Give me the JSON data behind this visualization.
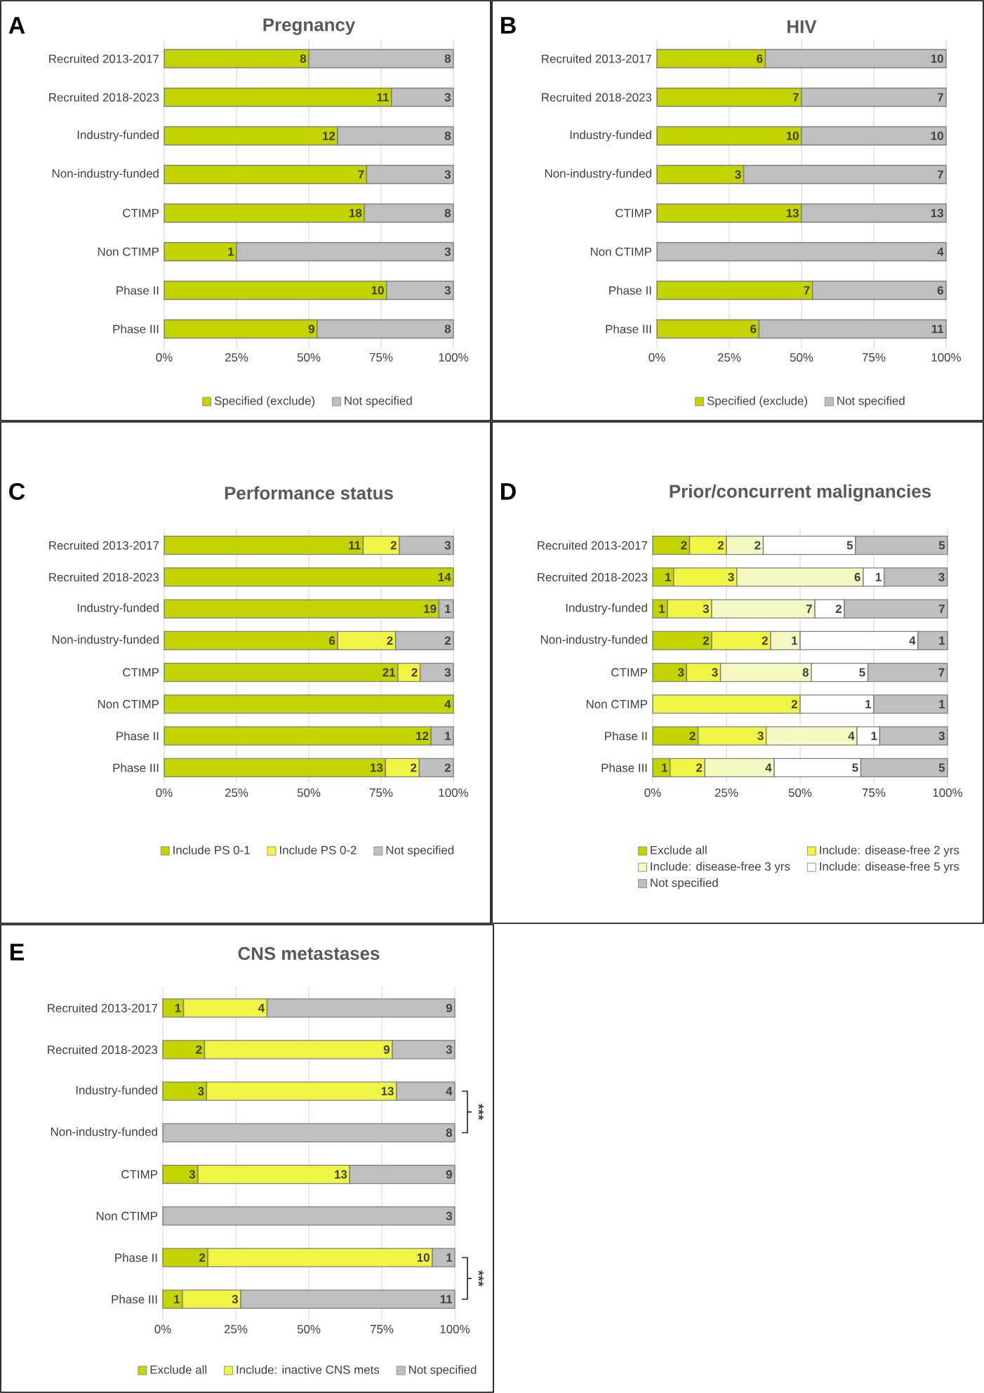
{
  "chart_data": [
    {
      "type": "bar",
      "orientation": "horizontal",
      "stacked": true,
      "title": "Pregnancy",
      "categories": [
        "Recruited 2013-2017",
        "Recruited 2018-2023",
        "Industry-funded",
        "Non-industry-funded",
        "CTIMP",
        "Non CTIMP",
        "Phase II",
        "Phase III"
      ],
      "series": [
        {
          "name": "Specified (exclude)",
          "color": "#c3d400",
          "values": [
            50,
            78.6,
            60,
            70,
            69.2,
            25,
            76.9,
            52.9
          ]
        },
        {
          "name": "Not specified",
          "color": "#bfbfbf",
          "values": [
            50,
            21.4,
            40,
            30,
            30.8,
            75,
            23.1,
            47.1
          ]
        }
      ],
      "annotations": [
        "A",
        {
          "text": "8",
          "x": 50,
          "y": "Recruited 2013-2017"
        },
        {
          "text": "8",
          "x": 100,
          "y": "Recruited 2013-2017"
        },
        {
          "text": "11",
          "x": 78.6,
          "y": "Recruited 2018-2023"
        },
        {
          "text": "3",
          "x": 100,
          "y": "Recruited 2018-2023"
        },
        {
          "text": "12",
          "x": 60,
          "y": "Industry-funded"
        },
        {
          "text": "8",
          "x": 100,
          "y": "Industry-funded"
        },
        {
          "text": "7",
          "x": 70,
          "y": "Non-industry-funded"
        },
        {
          "text": "3",
          "x": 100,
          "y": "Non-industry-funded"
        },
        {
          "text": "18",
          "x": 69.2,
          "y": "CTIMP"
        },
        {
          "text": "8",
          "x": 100,
          "y": "CTIMP"
        },
        {
          "text": "1",
          "x": 25,
          "y": "Non CTIMP"
        },
        {
          "text": "3",
          "x": 100,
          "y": "Non CTIMP"
        },
        {
          "text": "10",
          "x": 76.9,
          "y": "Phase II"
        },
        {
          "text": "3",
          "x": 100,
          "y": "Phase II"
        },
        {
          "text": "9",
          "x": 52.9,
          "y": "Phase III"
        },
        {
          "text": "8",
          "x": 100,
          "y": "Phase III"
        }
      ],
      "xlim": [
        0,
        100
      ],
      "xticks": [
        {
          "value": 0,
          "label": "0%"
        },
        {
          "value": 25,
          "label": "25%"
        },
        {
          "value": 50,
          "label": "50%"
        },
        {
          "value": 75,
          "label": "75%"
        },
        {
          "value": 100,
          "label": "100%"
        }
      ],
      "grid": "x",
      "legend": "bottom"
    },
    {
      "type": "bar",
      "orientation": "horizontal",
      "stacked": true,
      "title": "HIV",
      "categories": [
        "Recruited 2013-2017",
        "Recruited 2018-2023",
        "Industry-funded",
        "Non-industry-funded",
        "CTIMP",
        "Non CTIMP",
        "Phase II",
        "Phase III"
      ],
      "series": [
        {
          "name": "Specified (exclude)",
          "color": "#c3d400",
          "values": [
            37.5,
            50,
            50,
            30,
            50,
            null,
            53.8,
            35.3
          ]
        },
        {
          "name": "Not specified",
          "color": "#bfbfbf",
          "values": [
            62.5,
            50,
            50,
            70,
            50,
            100,
            46.2,
            64.7
          ]
        }
      ],
      "annotations": [
        "B",
        {
          "text": "6",
          "x": 37.5,
          "y": "Recruited 2013-2017"
        },
        {
          "text": "10",
          "x": 100,
          "y": "Recruited 2013-2017"
        },
        {
          "text": "7",
          "x": 50,
          "y": "Recruited 2018-2023"
        },
        {
          "text": "7",
          "x": 100,
          "y": "Recruited 2018-2023"
        },
        {
          "text": "10",
          "x": 50,
          "y": "Industry-funded"
        },
        {
          "text": "10",
          "x": 100,
          "y": "Industry-funded"
        },
        {
          "text": "3",
          "x": 30,
          "y": "Non-industry-funded"
        },
        {
          "text": "7",
          "x": 100,
          "y": "Non-industry-funded"
        },
        {
          "text": "13",
          "x": 50,
          "y": "CTIMP"
        },
        {
          "text": "13",
          "x": 100,
          "y": "CTIMP"
        },
        {
          "text": "4",
          "x": 100,
          "y": "Non CTIMP"
        },
        {
          "text": "7",
          "x": 53.8,
          "y": "Phase II"
        },
        {
          "text": "6",
          "x": 100,
          "y": "Phase II"
        },
        {
          "text": "6",
          "x": 35.3,
          "y": "Phase III"
        },
        {
          "text": "11",
          "x": 100,
          "y": "Phase III"
        }
      ],
      "xlim": [
        0,
        100
      ],
      "xticks": [
        {
          "value": 0,
          "label": "0%"
        },
        {
          "value": 25,
          "label": "25%"
        },
        {
          "value": 50,
          "label": "50%"
        },
        {
          "value": 75,
          "label": "75%"
        },
        {
          "value": 100,
          "label": "100%"
        }
      ],
      "grid": "x",
      "legend": "bottom"
    },
    {
      "type": "bar",
      "orientation": "horizontal",
      "stacked": true,
      "title": "Performance status",
      "categories": [
        "Recruited 2013-2017",
        "Recruited 2018-2023",
        "Industry-funded",
        "Non-industry-funded",
        "CTIMP",
        "Non CTIMP",
        "Phase II",
        "Phase III"
      ],
      "series": [
        {
          "name": "Include PS 0-1",
          "color": "#c3d400",
          "values": [
            68.8,
            100,
            95,
            60,
            80.8,
            100,
            92.3,
            76.5
          ]
        },
        {
          "name": "Include PS 0-2",
          "color": "#f0f545",
          "values": [
            12.5,
            null,
            null,
            20,
            7.7,
            null,
            null,
            11.7
          ]
        },
        {
          "name": "Not specified",
          "color": "#bfbfbf",
          "values": [
            18.7,
            null,
            5,
            20,
            11.5,
            null,
            7.7,
            11.8
          ]
        }
      ],
      "annotations": [
        "C",
        {
          "text": "11",
          "x": 68.8,
          "y": "Recruited 2013-2017"
        },
        {
          "text": "2",
          "x": 81.3,
          "y": "Recruited 2013-2017"
        },
        {
          "text": "3",
          "x": 100,
          "y": "Recruited 2013-2017"
        },
        {
          "text": "14",
          "x": 100,
          "y": "Recruited 2018-2023"
        },
        {
          "text": "19",
          "x": 95,
          "y": "Industry-funded"
        },
        {
          "text": "1",
          "x": 100,
          "y": "Industry-funded"
        },
        {
          "text": "6",
          "x": 60,
          "y": "Non-industry-funded"
        },
        {
          "text": "2",
          "x": 80,
          "y": "Non-industry-funded"
        },
        {
          "text": "2",
          "x": 100,
          "y": "Non-industry-funded"
        },
        {
          "text": "21",
          "x": 80.8,
          "y": "CTIMP"
        },
        {
          "text": "2",
          "x": 88.5,
          "y": "CTIMP"
        },
        {
          "text": "3",
          "x": 100,
          "y": "CTIMP"
        },
        {
          "text": "4",
          "x": 100,
          "y": "Non CTIMP"
        },
        {
          "text": "12",
          "x": 92.3,
          "y": "Phase II"
        },
        {
          "text": "1",
          "x": 100,
          "y": "Phase II"
        },
        {
          "text": "13",
          "x": 76.5,
          "y": "Phase III"
        },
        {
          "text": "2",
          "x": 88.2,
          "y": "Phase III"
        },
        {
          "text": "2",
          "x": 100,
          "y": "Phase III"
        }
      ],
      "xlim": [
        0,
        100
      ],
      "xticks": [
        {
          "value": 0,
          "label": "0%"
        },
        {
          "value": 25,
          "label": "25%"
        },
        {
          "value": 50,
          "label": "50%"
        },
        {
          "value": 75,
          "label": "75%"
        },
        {
          "value": 100,
          "label": "100%"
        }
      ],
      "grid": "x",
      "legend": "bottom"
    },
    {
      "type": "bar",
      "orientation": "horizontal",
      "stacked": true,
      "title": "Prior/concurrent malignancies",
      "categories": [
        "Recruited 2013-2017",
        "Recruited 2018-2023",
        "Industry-funded",
        "Non-industry-funded",
        "CTIMP",
        "Non CTIMP",
        "Phase II",
        "Phase III"
      ],
      "series": [
        {
          "name": "Exclude all",
          "color": "#c3d400",
          "values": [
            12.5,
            7.1,
            5,
            20,
            11.5,
            null,
            15.4,
            5.9
          ]
        },
        {
          "name": "Include: disease-free 2 yrs",
          "color": "#f0f545",
          "values": [
            12.5,
            21.4,
            15,
            20,
            11.5,
            50,
            23.1,
            11.8
          ]
        },
        {
          "name": "Include: disease-free 3 yrs",
          "color": "#f6f8c4",
          "values": [
            12.5,
            42.9,
            35,
            10,
            30.8,
            null,
            30.8,
            23.5
          ]
        },
        {
          "name": "Include: disease-free 5 yrs",
          "color": "#ffffff",
          "values": [
            31.3,
            7.1,
            10,
            40,
            19.2,
            25,
            7.7,
            29.4
          ]
        },
        {
          "name": "Not specified",
          "color": "#bfbfbf",
          "values": [
            31.2,
            21.4,
            35,
            10,
            26.9,
            25,
            23.0,
            29.4
          ]
        }
      ],
      "annotations": [
        "D",
        {
          "text": "2",
          "x": 12.5,
          "y": "Recruited 2013-2017"
        },
        {
          "text": "2",
          "x": 25,
          "y": "Recruited 2013-2017"
        },
        {
          "text": "2",
          "x": 37.5,
          "y": "Recruited 2013-2017"
        },
        {
          "text": "5",
          "x": 68.8,
          "y": "Recruited 2013-2017"
        },
        {
          "text": "5",
          "x": 100,
          "y": "Recruited 2013-2017"
        },
        {
          "text": "1",
          "x": 7.1,
          "y": "Recruited 2018-2023"
        },
        {
          "text": "3",
          "x": 28.5,
          "y": "Recruited 2018-2023"
        },
        {
          "text": "6",
          "x": 71.4,
          "y": "Recruited 2018-2023"
        },
        {
          "text": "1",
          "x": 78.5,
          "y": "Recruited 2018-2023"
        },
        {
          "text": "3",
          "x": 99.9,
          "y": "Recruited 2018-2023"
        },
        {
          "text": "1",
          "x": 5,
          "y": "Industry-funded"
        },
        {
          "text": "3",
          "x": 20,
          "y": "Industry-funded"
        },
        {
          "text": "7",
          "x": 55,
          "y": "Industry-funded"
        },
        {
          "text": "2",
          "x": 65,
          "y": "Industry-funded"
        },
        {
          "text": "7",
          "x": 100,
          "y": "Industry-funded"
        },
        {
          "text": "2",
          "x": 20,
          "y": "Non-industry-funded"
        },
        {
          "text": "2",
          "x": 40,
          "y": "Non-industry-funded"
        },
        {
          "text": "1",
          "x": 50,
          "y": "Non-industry-funded"
        },
        {
          "text": "4",
          "x": 90,
          "y": "Non-industry-funded"
        },
        {
          "text": "1",
          "x": 100,
          "y": "Non-industry-funded"
        },
        {
          "text": "3",
          "x": 11.5,
          "y": "CTIMP"
        },
        {
          "text": "3",
          "x": 23,
          "y": "CTIMP"
        },
        {
          "text": "8",
          "x": 53.8,
          "y": "CTIMP"
        },
        {
          "text": "5",
          "x": 73,
          "y": "CTIMP"
        },
        {
          "text": "7",
          "x": 99.9,
          "y": "CTIMP"
        },
        {
          "text": "2",
          "x": 50,
          "y": "Non CTIMP"
        },
        {
          "text": "1",
          "x": 75,
          "y": "Non CTIMP"
        },
        {
          "text": "1",
          "x": 100,
          "y": "Non CTIMP"
        },
        {
          "text": "2",
          "x": 15.4,
          "y": "Phase II"
        },
        {
          "text": "3",
          "x": 38.5,
          "y": "Phase II"
        },
        {
          "text": "4",
          "x": 69.3,
          "y": "Phase II"
        },
        {
          "text": "1",
          "x": 77,
          "y": "Phase II"
        },
        {
          "text": "3",
          "x": 100,
          "y": "Phase II"
        },
        {
          "text": "1",
          "x": 5.9,
          "y": "Phase III"
        },
        {
          "text": "2",
          "x": 17.7,
          "y": "Phase III"
        },
        {
          "text": "4",
          "x": 41.2,
          "y": "Phase III"
        },
        {
          "text": "5",
          "x": 70.6,
          "y": "Phase III"
        },
        {
          "text": "5",
          "x": 100,
          "y": "Phase III"
        }
      ],
      "xlim": [
        0,
        100
      ],
      "xticks": [
        {
          "value": 0,
          "label": "0%"
        },
        {
          "value": 25,
          "label": "25%"
        },
        {
          "value": 50,
          "label": "50%"
        },
        {
          "value": 75,
          "label": "75%"
        },
        {
          "value": 100,
          "label": "100%"
        }
      ],
      "grid": "x",
      "legend": "bottom"
    },
    {
      "type": "bar",
      "orientation": "horizontal",
      "stacked": true,
      "title": "CNS metastases",
      "categories": [
        "Recruited 2013-2017",
        "Recruited 2018-2023",
        "Industry-funded",
        "Non-industry-funded",
        "CTIMP",
        "Non CTIMP",
        "Phase II",
        "Phase III"
      ],
      "series": [
        {
          "name": "Exclude all",
          "color": "#c3d400",
          "values": [
            7.1,
            14.3,
            15,
            null,
            12,
            null,
            15.4,
            6.7
          ]
        },
        {
          "name": "Include: inactive CNS mets",
          "color": "#f0f545",
          "values": [
            28.6,
            64.3,
            65,
            null,
            52,
            null,
            76.9,
            20
          ]
        },
        {
          "name": "Not specified",
          "color": "#bfbfbf",
          "values": [
            64.3,
            21.4,
            20,
            100,
            36,
            100,
            7.7,
            73.3
          ]
        }
      ],
      "annotations": [
        "E",
        "***",
        "***",
        {
          "text": "1",
          "x": 7.1,
          "y": "Recruited 2013-2017"
        },
        {
          "text": "4",
          "x": 35.7,
          "y": "Recruited 2013-2017"
        },
        {
          "text": "9",
          "x": 100,
          "y": "Recruited 2013-2017"
        },
        {
          "text": "2",
          "x": 14.3,
          "y": "Recruited 2018-2023"
        },
        {
          "text": "9",
          "x": 78.6,
          "y": "Recruited 2018-2023"
        },
        {
          "text": "3",
          "x": 100,
          "y": "Recruited 2018-2023"
        },
        {
          "text": "3",
          "x": 15,
          "y": "Industry-funded"
        },
        {
          "text": "13",
          "x": 80,
          "y": "Industry-funded"
        },
        {
          "text": "4",
          "x": 100,
          "y": "Industry-funded"
        },
        {
          "text": "8",
          "x": 100,
          "y": "Non-industry-funded"
        },
        {
          "text": "3",
          "x": 12,
          "y": "CTIMP"
        },
        {
          "text": "13",
          "x": 64,
          "y": "CTIMP"
        },
        {
          "text": "9",
          "x": 100,
          "y": "CTIMP"
        },
        {
          "text": "3",
          "x": 100,
          "y": "Non CTIMP"
        },
        {
          "text": "2",
          "x": 15.4,
          "y": "Phase II"
        },
        {
          "text": "10",
          "x": 92.3,
          "y": "Phase II"
        },
        {
          "text": "1",
          "x": 100,
          "y": "Phase II"
        },
        {
          "text": "1",
          "x": 6.7,
          "y": "Phase III"
        },
        {
          "text": "3",
          "x": 26.7,
          "y": "Phase III"
        },
        {
          "text": "11",
          "x": 100,
          "y": "Phase III"
        }
      ],
      "xlim": [
        0,
        100
      ],
      "xticks": [
        {
          "value": 0,
          "label": "0%"
        },
        {
          "value": 25,
          "label": "25%"
        },
        {
          "value": 50,
          "label": "50%"
        },
        {
          "value": 75,
          "label": "75%"
        },
        {
          "value": 100,
          "label": "100%"
        }
      ],
      "grid": "x",
      "legend": "bottom"
    }
  ]
}
